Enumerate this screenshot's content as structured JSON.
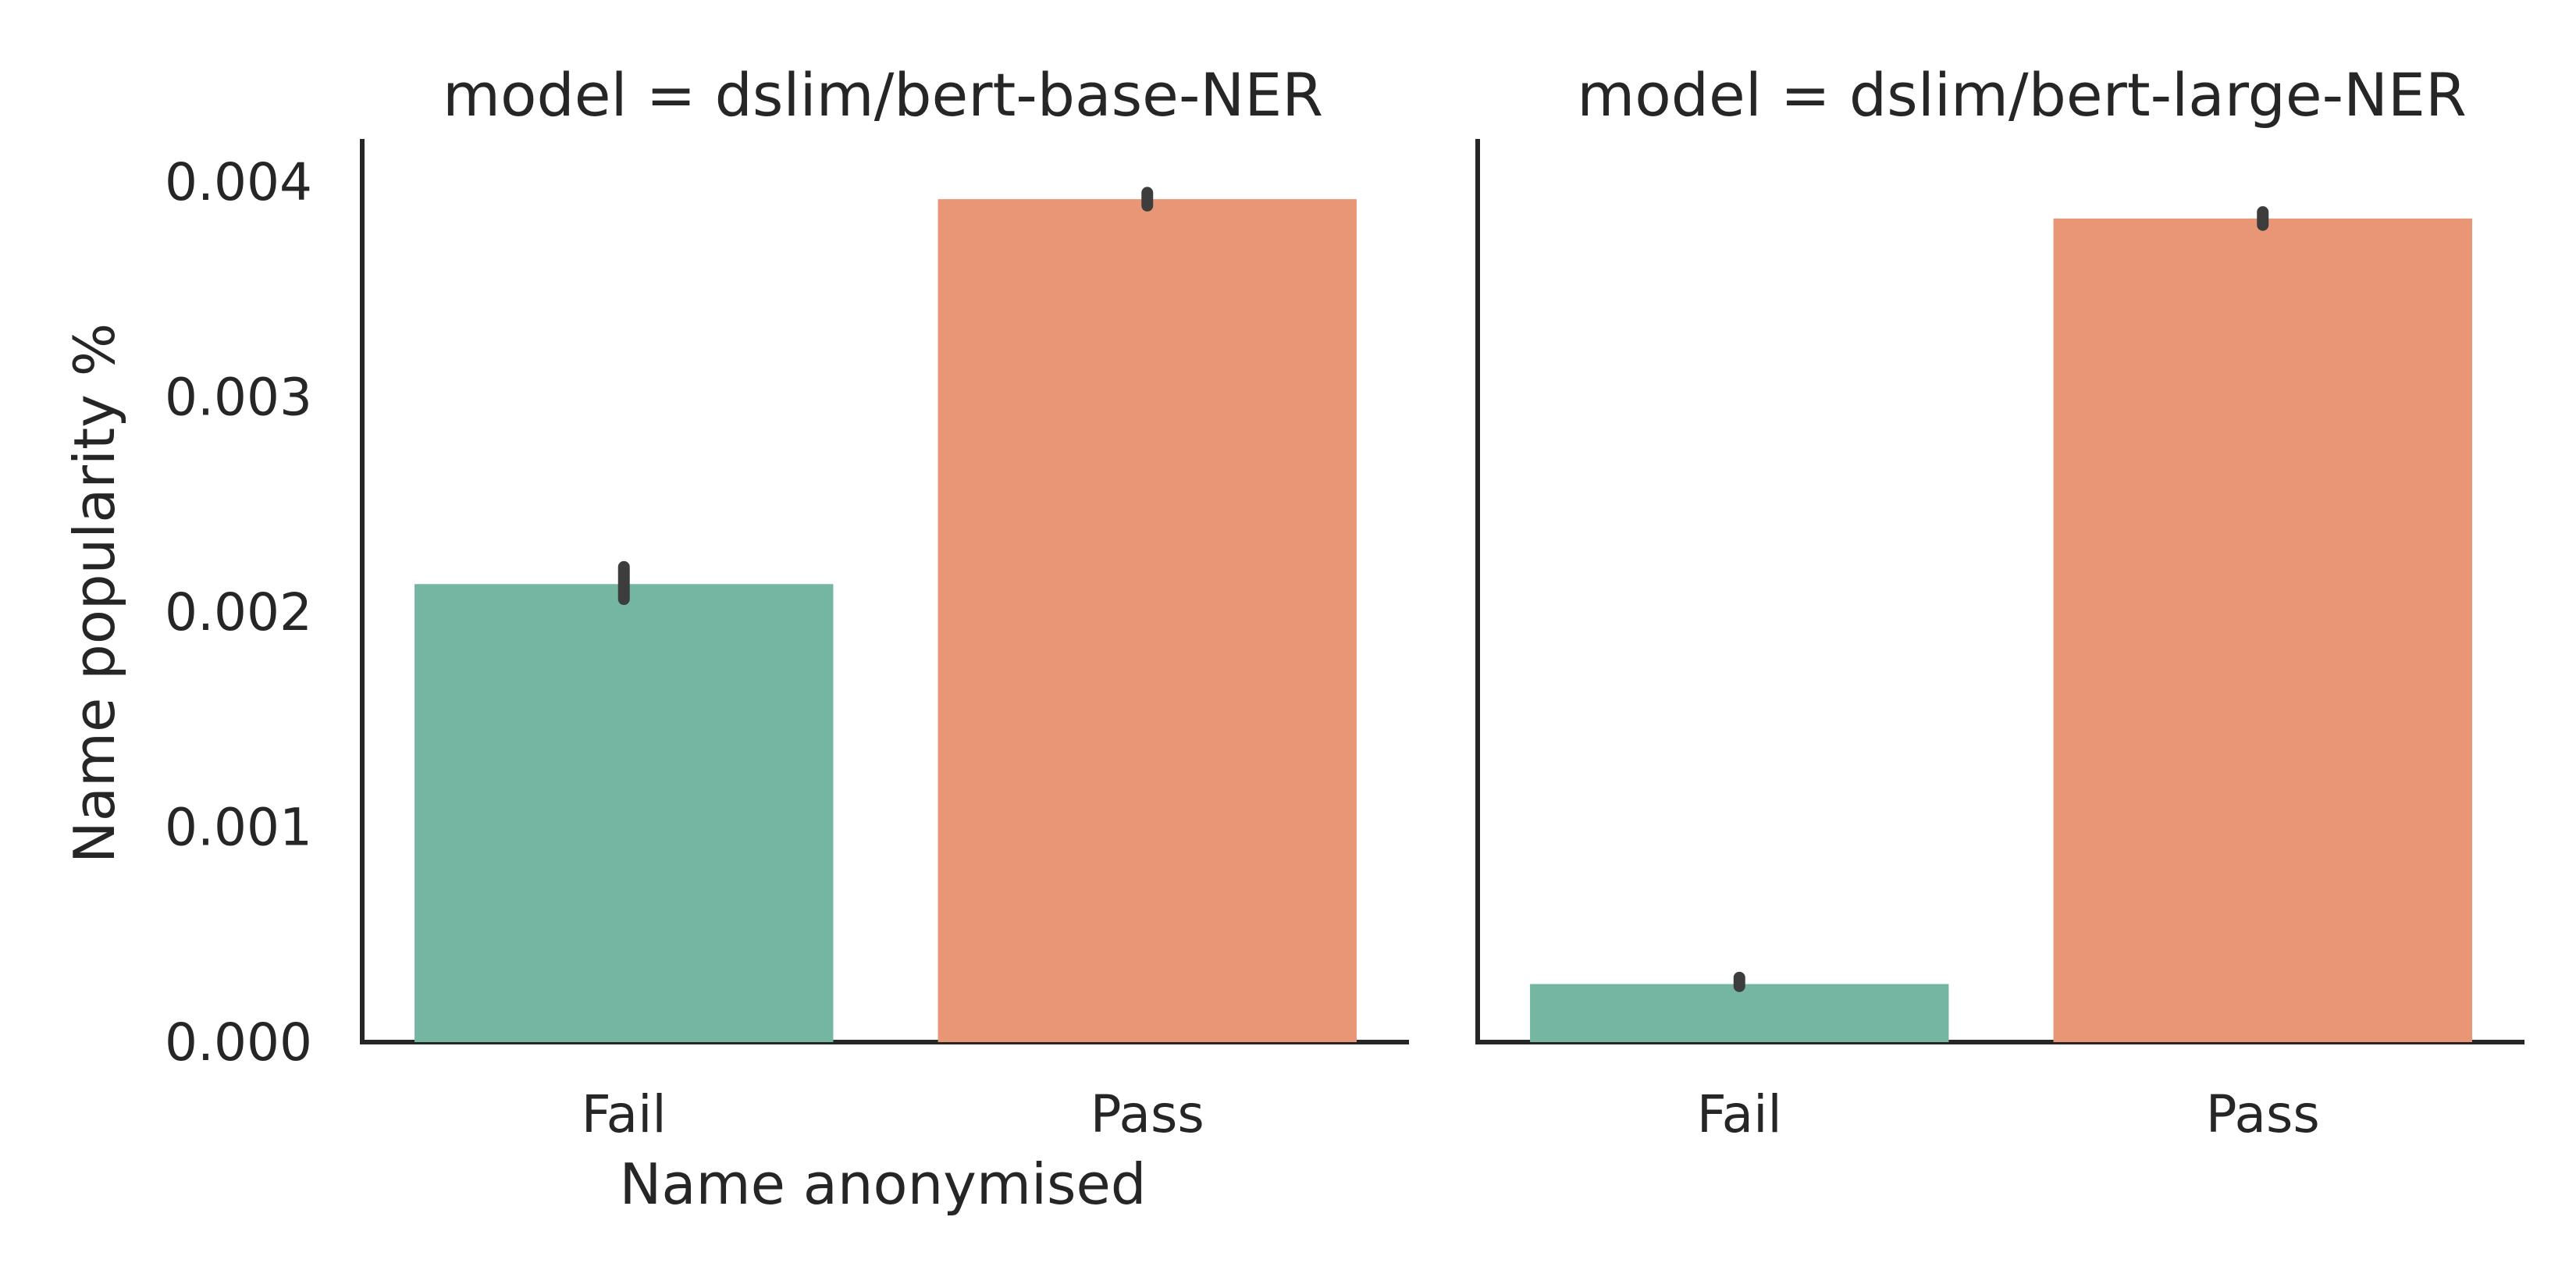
{
  "chart_data": [
    {
      "type": "bar",
      "title": "model = dslim/bert-base-NER",
      "xlabel": "Name anonymised",
      "ylabel": "Name popularity %",
      "categories": [
        "Fail",
        "Pass"
      ],
      "values": [
        0.00213,
        0.00392
      ],
      "error_bars": [
        [
          0.00206,
          0.00221
        ],
        [
          0.00389,
          0.00395
        ]
      ],
      "colors": [
        "#74b6a2",
        "#e89675"
      ],
      "ylim": [
        0,
        0.0042
      ],
      "yticks": [
        "0.000",
        "0.001",
        "0.002",
        "0.003",
        "0.004"
      ],
      "ytick_values": [
        0,
        0.001,
        0.002,
        0.003,
        0.004
      ],
      "grid": false
    },
    {
      "type": "bar",
      "title": "model = dslim/bert-large-NER",
      "xlabel": "",
      "ylabel": "",
      "categories": [
        "Fail",
        "Pass"
      ],
      "values": [
        0.00027,
        0.00383
      ],
      "error_bars": [
        [
          0.00026,
          0.0003
        ],
        [
          0.0038,
          0.00386
        ]
      ],
      "colors": [
        "#74b6a2",
        "#e89675"
      ],
      "ylim": [
        0,
        0.0042
      ],
      "yticks": [],
      "ytick_values": [],
      "grid": false
    }
  ]
}
